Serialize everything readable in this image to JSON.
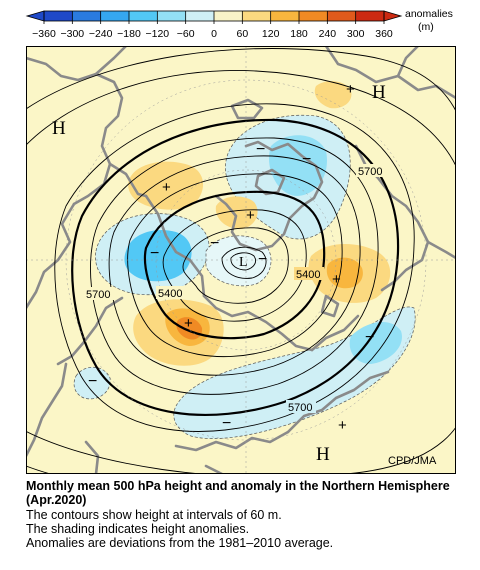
{
  "colorbar": {
    "ticks": [
      "−360",
      "−300",
      "−240",
      "−180",
      "−120",
      "−60",
      "0",
      "60",
      "120",
      "180",
      "240",
      "300",
      "360"
    ],
    "unit_label_line1": "anomalies",
    "unit_label_line2": "(m)",
    "colors": [
      "#1f49c8",
      "#2a7be0",
      "#35a7f0",
      "#52c8f5",
      "#93e0f5",
      "#cfeff5",
      "#f8f3c8",
      "#fbd980",
      "#f8b63e",
      "#f08a24",
      "#e05a1c",
      "#cc2a12"
    ]
  },
  "map": {
    "high_labels": [
      "H",
      "H",
      "H"
    ],
    "low_labels": [
      "L"
    ],
    "contour_labels": [
      "5700",
      "5400",
      "5700",
      "5400",
      "5700"
    ],
    "plus_marks": [
      "+",
      "+",
      "+",
      "+",
      "+",
      "+"
    ],
    "minus_marks": [
      "−",
      "−",
      "−",
      "−",
      "−",
      "−",
      "−",
      "−"
    ],
    "credit": "CPD/JMA"
  },
  "caption": {
    "title": "Monthly mean 500 hPa height and anomaly in the Northern Hemisphere (Apr.2020)",
    "line1": "The contours show height at intervals of 60 m.",
    "line2": "The shading indicates height anomalies.",
    "line3": "Anomalies are deviations from the 1981–2010 average."
  }
}
